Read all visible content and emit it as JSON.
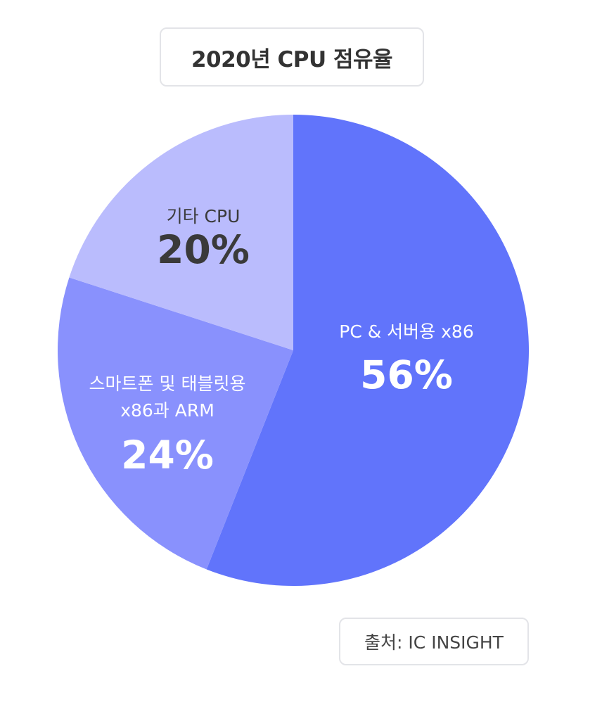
{
  "chart_data": {
    "type": "pie",
    "title": "2020년 CPU 점유율",
    "unit": "%",
    "slices": [
      {
        "label": "PC & 서버용 x86",
        "label_lines": [
          "PC & 서버용 x86"
        ],
        "value": 56,
        "value_text": "56%",
        "color": "#6174fb",
        "text_color": "#ffffff"
      },
      {
        "label": "스마트폰 및 태블릿용 x86과 ARM",
        "label_lines": [
          "스마트폰 및 태블릿용",
          "x86과 ARM"
        ],
        "value": 24,
        "value_text": "24%",
        "color": "#8991fd",
        "text_color": "#ffffff"
      },
      {
        "label": "기타 CPU",
        "label_lines": [
          "기타 CPU"
        ],
        "value": 20,
        "value_text": "20%",
        "color": "#babcfd",
        "text_color": "#3a3a3a"
      }
    ],
    "start_angle_deg": 0,
    "direction": "clockwise"
  },
  "source": {
    "text": "출처: IC INSIGHT"
  }
}
